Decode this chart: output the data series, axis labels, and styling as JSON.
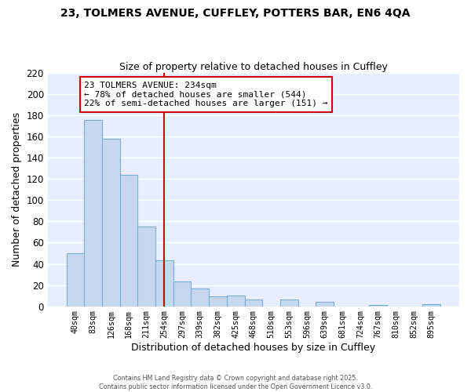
{
  "title1": "23, TOLMERS AVENUE, CUFFLEY, POTTERS BAR, EN6 4QA",
  "title2": "Size of property relative to detached houses in Cuffley",
  "xlabel": "Distribution of detached houses by size in Cuffley",
  "ylabel": "Number of detached properties",
  "bar_labels": [
    "40sqm",
    "83sqm",
    "126sqm",
    "168sqm",
    "211sqm",
    "254sqm",
    "297sqm",
    "339sqm",
    "382sqm",
    "425sqm",
    "468sqm",
    "510sqm",
    "553sqm",
    "596sqm",
    "639sqm",
    "681sqm",
    "724sqm",
    "767sqm",
    "810sqm",
    "852sqm",
    "895sqm"
  ],
  "bar_values": [
    50,
    176,
    158,
    124,
    75,
    43,
    23,
    17,
    9,
    10,
    6,
    0,
    6,
    0,
    4,
    0,
    0,
    1,
    0,
    0,
    2
  ],
  "bar_color": "#c5d8f0",
  "bar_edge_color": "#7aadd4",
  "vline_x": 5.0,
  "vline_color": "#cc0000",
  "ylim": [
    0,
    220
  ],
  "yticks": [
    0,
    20,
    40,
    60,
    80,
    100,
    120,
    140,
    160,
    180,
    200,
    220
  ],
  "annotation_title": "23 TOLMERS AVENUE: 234sqm",
  "annotation_line1": "← 78% of detached houses are smaller (544)",
  "annotation_line2": "22% of semi-detached houses are larger (151) →",
  "annotation_box_color": "white",
  "annotation_box_edge": "#cc0000",
  "footer1": "Contains HM Land Registry data © Crown copyright and database right 2025.",
  "footer2": "Contains public sector information licensed under the Open Government Licence v3.0.",
  "plot_bg_color": "#e8eeff",
  "fig_bg_color": "#ffffff",
  "grid_color": "#ffffff"
}
